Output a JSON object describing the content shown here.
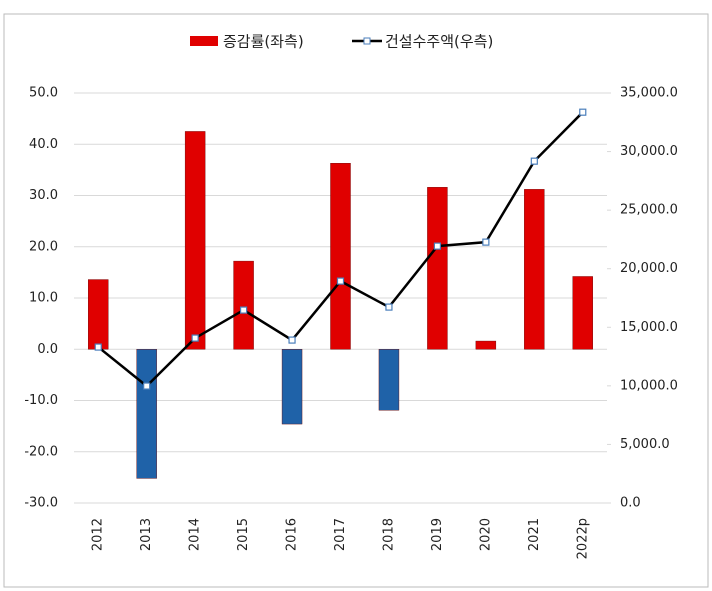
{
  "chart_data": {
    "type": "bar_line",
    "categories": [
      "2012",
      "2013",
      "2014",
      "2015",
      "2016",
      "2017",
      "2018",
      "2019",
      "2020",
      "2021",
      "2022p"
    ],
    "series": [
      {
        "name": "증감률(좌측)",
        "type": "bar",
        "color": "#e00000",
        "negative_color": "#1f62a8",
        "values": [
          13.6,
          -25.2,
          42.5,
          17.2,
          -14.6,
          36.3,
          -11.9,
          31.6,
          1.6,
          31.2,
          14.2
        ]
      },
      {
        "name": "건설수주액(우측)",
        "type": "line",
        "axis": "y2",
        "color": "#000000",
        "marker_color": "#4a7ebb",
        "values": [
          13311,
          9983,
          14078,
          16468,
          13908,
          18942,
          16724,
          21928,
          22270,
          29181,
          33362
        ]
      }
    ],
    "ylim": [
      -30,
      50
    ],
    "yticks": [
      {
        "value": -30,
        "label": "-30.0"
      },
      {
        "value": -20,
        "label": "-20.0"
      },
      {
        "value": -10,
        "label": "-10.0"
      },
      {
        "value": 0,
        "label": "0.0"
      },
      {
        "value": 10,
        "label": "10.0"
      },
      {
        "value": 20,
        "label": "20.0"
      },
      {
        "value": 30,
        "label": "30.0"
      },
      {
        "value": 40,
        "label": "40.0"
      },
      {
        "value": 50,
        "label": "50.0"
      }
    ],
    "y2lim": [
      0,
      35000
    ],
    "y2ticks": [
      {
        "value": 0,
        "label": "0.0"
      },
      {
        "value": 5000,
        "label": "5,000.0"
      },
      {
        "value": 10000,
        "label": "10,000.0"
      },
      {
        "value": 15000,
        "label": "15,000.0"
      },
      {
        "value": 20000,
        "label": "20,000.0"
      },
      {
        "value": 25000,
        "label": "25,000.0"
      },
      {
        "value": 30000,
        "label": "30,000.0"
      },
      {
        "value": 35000,
        "label": "35,000.0"
      }
    ],
    "grid": true,
    "legend": "top"
  }
}
